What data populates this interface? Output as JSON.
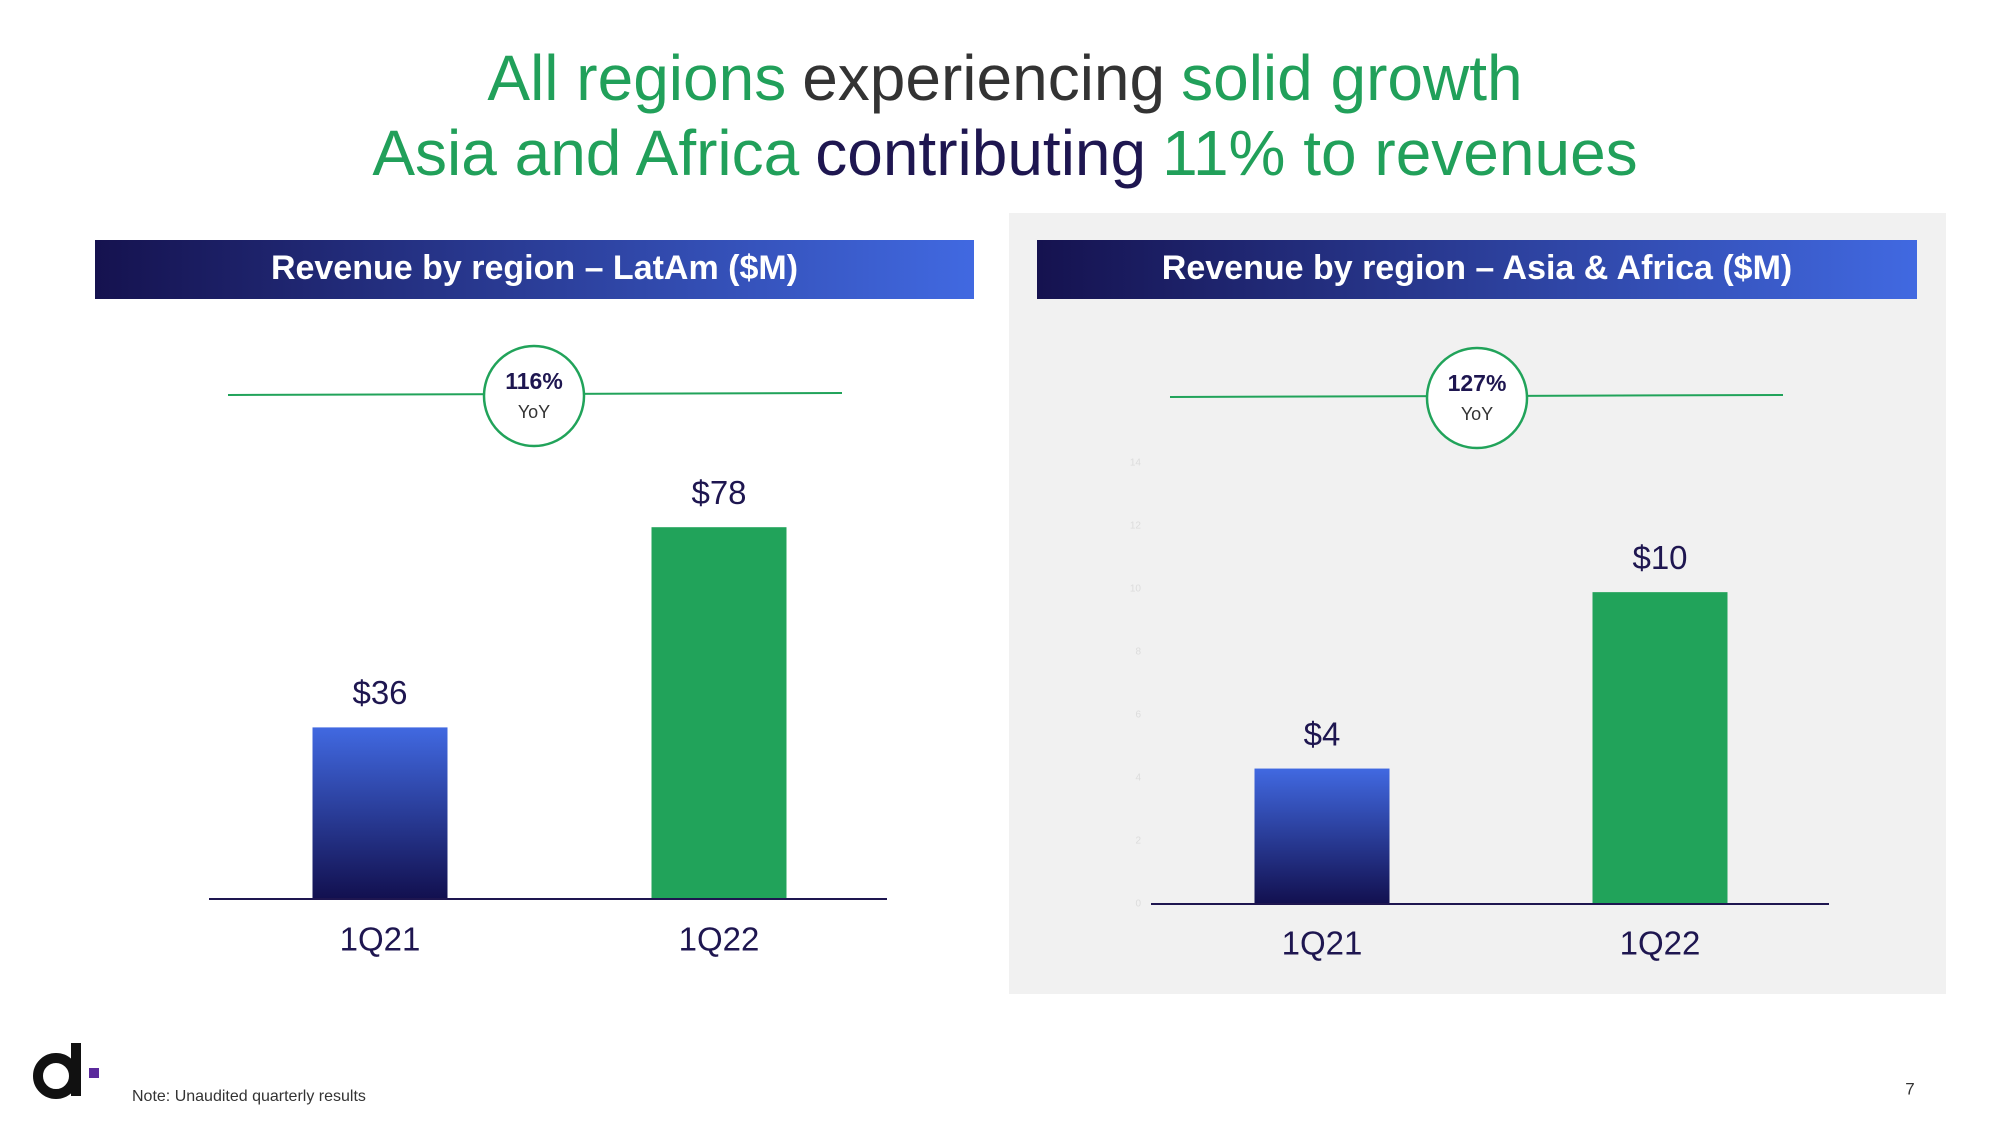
{
  "title": {
    "lines": [
      [
        {
          "text": "All regions",
          "color": "#21a05a"
        },
        {
          "text": "experiencing",
          "color": "#333333"
        },
        {
          "text": "solid growth",
          "color": "#21a05a"
        }
      ],
      [
        {
          "text": "Asia and Africa",
          "color": "#21a05a"
        },
        {
          "text": "contributing",
          "color": "#1e1650"
        },
        {
          "text": "11% to revenues",
          "color": "#21a05a"
        }
      ]
    ]
  },
  "chart_data": [
    {
      "type": "bar",
      "title": "Revenue by region – LatAm ($M)",
      "categories": [
        "1Q21",
        "1Q22"
      ],
      "values": [
        36,
        78
      ],
      "value_labels": [
        "$36",
        "$78"
      ],
      "colors": [
        "#4169e1",
        "#21a35a"
      ],
      "ylim": [
        0,
        90
      ],
      "growth": {
        "text": "116%",
        "caption": "YoY"
      }
    },
    {
      "type": "bar",
      "title": "Revenue by region – Asia & Africa ($M)",
      "categories": [
        "1Q21",
        "1Q22"
      ],
      "values": [
        4.3,
        9.9
      ],
      "value_labels": [
        "$4",
        "$10"
      ],
      "colors": [
        "#4169e1",
        "#21a35a"
      ],
      "ylim": [
        0,
        14
      ],
      "yticks": [
        0,
        2,
        4,
        6,
        8,
        10,
        12,
        14
      ],
      "growth": {
        "text": "127%",
        "caption": "YoY"
      }
    }
  ],
  "note": "Note: Unaudited quarterly results",
  "page_number": "7"
}
